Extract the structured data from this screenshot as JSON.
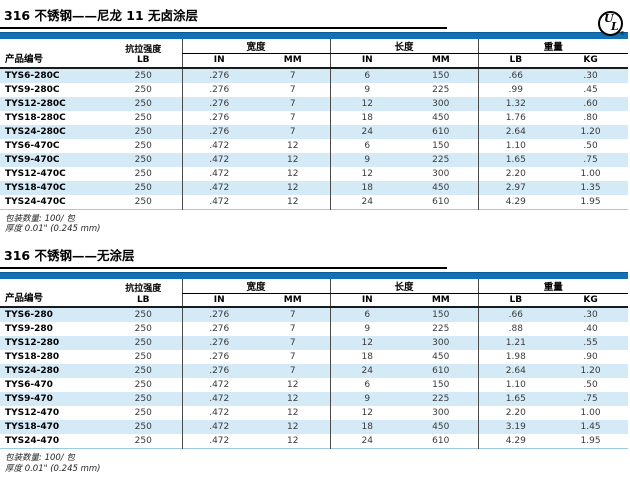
{
  "colors": {
    "accent": "#1271b5",
    "stripe": "#d5eaf7"
  },
  "ul_badge": {
    "u": "U",
    "l": "L",
    "reg": "®"
  },
  "columns": {
    "product": "产品编号",
    "tensile": "抗拉强度",
    "tensile_unit": "LB",
    "width_group": "宽度",
    "length_group": "长度",
    "weight_group": "重量",
    "in": "IN",
    "mm": "MM",
    "lb": "LB",
    "kg": "KG"
  },
  "sections": [
    {
      "title": "316 不锈钢——尼龙 11 无卤涂层",
      "rows": [
        [
          "TYS6-280C",
          "250",
          ".276",
          "7",
          "6",
          "150",
          ".66",
          ".30"
        ],
        [
          "TYS9-280C",
          "250",
          ".276",
          "7",
          "9",
          "225",
          ".99",
          ".45"
        ],
        [
          "TYS12-280C",
          "250",
          ".276",
          "7",
          "12",
          "300",
          "1.32",
          ".60"
        ],
        [
          "TYS18-280C",
          "250",
          ".276",
          "7",
          "18",
          "450",
          "1.76",
          ".80"
        ],
        [
          "TYS24-280C",
          "250",
          ".276",
          "7",
          "24",
          "610",
          "2.64",
          "1.20"
        ],
        [
          "TYS6-470C",
          "250",
          ".472",
          "12",
          "6",
          "150",
          "1.10",
          ".50"
        ],
        [
          "TYS9-470C",
          "250",
          ".472",
          "12",
          "9",
          "225",
          "1.65",
          ".75"
        ],
        [
          "TYS12-470C",
          "250",
          ".472",
          "12",
          "12",
          "300",
          "2.20",
          "1.00"
        ],
        [
          "TYS18-470C",
          "250",
          ".472",
          "12",
          "18",
          "450",
          "2.97",
          "1.35"
        ],
        [
          "TYS24-470C",
          "250",
          ".472",
          "12",
          "24",
          "610",
          "4.29",
          "1.95"
        ]
      ],
      "footnotes": [
        "包装数量: 100/ 包",
        "厚度 0.01\"  (0.245 mm)"
      ]
    },
    {
      "title": "316 不锈钢——无涂层",
      "rows": [
        [
          "TYS6-280",
          "250",
          ".276",
          "7",
          "6",
          "150",
          ".66",
          ".30"
        ],
        [
          "TYS9-280",
          "250",
          ".276",
          "7",
          "9",
          "225",
          ".88",
          ".40"
        ],
        [
          "TYS12-280",
          "250",
          ".276",
          "7",
          "12",
          "300",
          "1.21",
          ".55"
        ],
        [
          "TYS18-280",
          "250",
          ".276",
          "7",
          "18",
          "450",
          "1.98",
          ".90"
        ],
        [
          "TYS24-280",
          "250",
          ".276",
          "7",
          "24",
          "610",
          "2.64",
          "1.20"
        ],
        [
          "TYS6-470",
          "250",
          ".472",
          "12",
          "6",
          "150",
          "1.10",
          ".50"
        ],
        [
          "TYS9-470",
          "250",
          ".472",
          "12",
          "9",
          "225",
          "1.65",
          ".75"
        ],
        [
          "TYS12-470",
          "250",
          ".472",
          "12",
          "12",
          "300",
          "2.20",
          "1.00"
        ],
        [
          "TYS18-470",
          "250",
          ".472",
          "12",
          "18",
          "450",
          "3.19",
          "1.45"
        ],
        [
          "TYS24-470",
          "250",
          ".472",
          "12",
          "24",
          "610",
          "4.29",
          "1.95"
        ]
      ],
      "footnotes": [
        "包装数量: 100/ 包",
        "厚度 0.01\"  (0.245 mm)"
      ]
    }
  ]
}
